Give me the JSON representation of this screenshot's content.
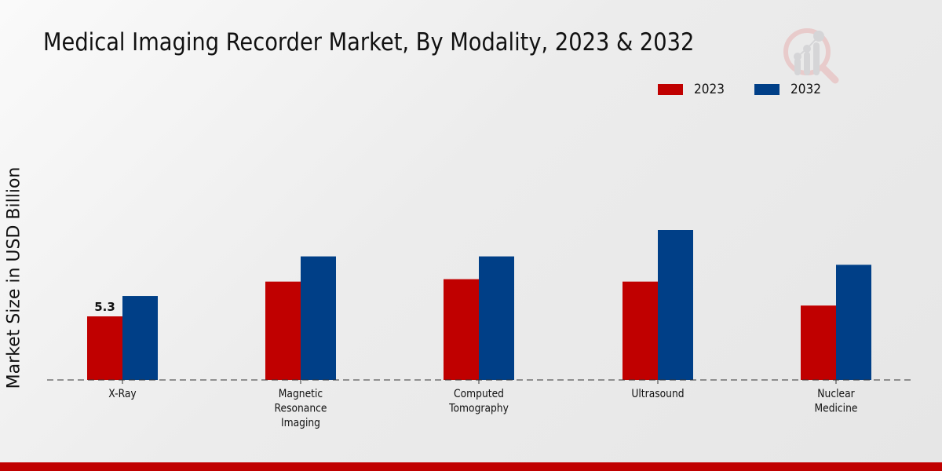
{
  "chart_data": {
    "type": "bar",
    "title": "Medical Imaging Recorder Market, By Modality, 2023 & 2032",
    "xlabel": "",
    "ylabel": "Market Size in USD Billion",
    "categories": [
      [
        "X-Ray"
      ],
      [
        "Magnetic",
        "Resonance",
        "Imaging"
      ],
      [
        "Computed",
        "Tomography"
      ],
      [
        "Ultrasound"
      ],
      [
        "Nuclear",
        "Medicine"
      ]
    ],
    "series": [
      {
        "name": "2023",
        "color": "#c00000",
        "values": [
          5.3,
          8.2,
          8.4,
          8.2,
          6.2
        ]
      },
      {
        "name": "2032",
        "color": "#003f87",
        "values": [
          7.0,
          10.3,
          10.3,
          12.5,
          9.6
        ]
      }
    ],
    "data_labels": [
      {
        "series": 0,
        "index": 0,
        "text": "5.3"
      }
    ],
    "ylim": [
      0,
      16
    ],
    "grid": false,
    "legend": "top-right",
    "baseline_style": "dashed"
  },
  "legend": {
    "items": [
      {
        "label": "2023",
        "color": "#c00000"
      },
      {
        "label": "2032",
        "color": "#003f87"
      }
    ]
  },
  "branding": {
    "logo_icon": "magnifier-chart-icon",
    "bottom_bar_color": "#c00000"
  }
}
